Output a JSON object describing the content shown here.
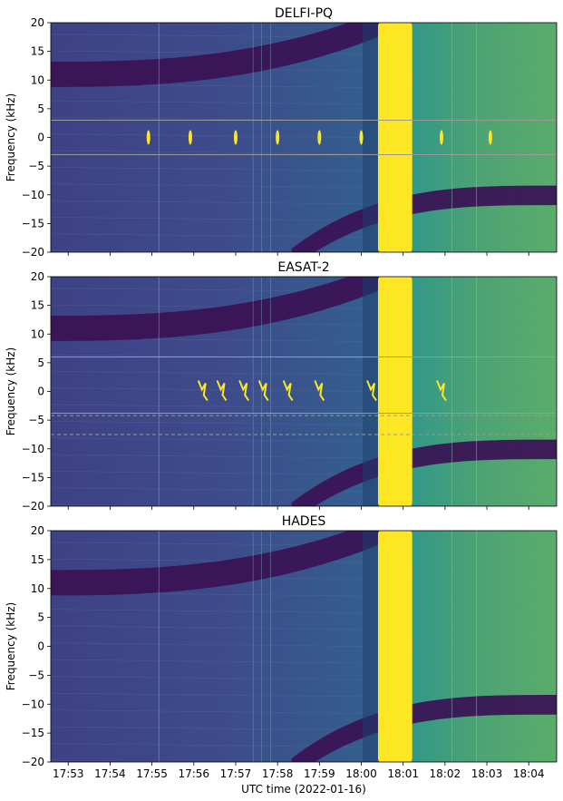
{
  "figure": {
    "xlabel": "UTC time (2022-01-16)",
    "ylabel": "Frequency (kHz)",
    "x_ticks": [
      "17:53",
      "17:54",
      "17:55",
      "17:56",
      "17:57",
      "17:58",
      "17:59",
      "18:00",
      "18:01",
      "18:02",
      "18:03",
      "18:04"
    ],
    "y_ticks": [
      "20",
      "15",
      "10",
      "5",
      "0",
      "−5",
      "−10",
      "−15",
      "−20"
    ]
  },
  "chart_data": [
    {
      "type": "heatmap",
      "title": "DELFI-PQ",
      "xlim": [
        "17:52:35",
        "18:04:40"
      ],
      "ylim": [
        -20,
        20
      ],
      "colormap": "viridis",
      "saturated_band": {
        "x_start": "18:00:24",
        "x_end": "18:01:13"
      },
      "doppler_bands": [
        {
          "description": "upper dark band",
          "start_freq": 11,
          "end_time": "18:00:40"
        },
        {
          "description": "lower dark band",
          "start_time": "17:58:30",
          "end_freq": -10
        }
      ],
      "hlines": [
        {
          "y": 3,
          "style": "solid"
        },
        {
          "y": -3,
          "style": "solid"
        }
      ],
      "signals": [
        {
          "time": "17:54:55",
          "freq": 0
        },
        {
          "time": "17:55:55",
          "freq": 0
        },
        {
          "time": "17:57:00",
          "freq": 0
        },
        {
          "time": "17:58:00",
          "freq": 0
        },
        {
          "time": "17:59:00",
          "freq": 0
        },
        {
          "time": "18:00:00",
          "freq": 0
        },
        {
          "time": "18:01:55",
          "freq": 0
        },
        {
          "time": "18:03:05",
          "freq": 0
        }
      ]
    },
    {
      "type": "heatmap",
      "title": "EASAT-2",
      "xlim": [
        "17:52:35",
        "18:04:40"
      ],
      "ylim": [
        -20,
        20
      ],
      "colormap": "viridis",
      "saturated_band": {
        "x_start": "18:00:24",
        "x_end": "18:01:13"
      },
      "hlines": [
        {
          "y": 6,
          "style": "solid"
        },
        {
          "y": -3.8,
          "style": "solid"
        },
        {
          "y": -4.2,
          "style": "dashed"
        },
        {
          "y": -7.5,
          "style": "dashed"
        }
      ],
      "signals": [
        {
          "time": "17:56:13",
          "freq": 0
        },
        {
          "time": "17:56:40",
          "freq": 0
        },
        {
          "time": "17:57:12",
          "freq": 0
        },
        {
          "time": "17:57:40",
          "freq": 0
        },
        {
          "time": "17:58:15",
          "freq": 0
        },
        {
          "time": "17:59:00",
          "freq": 0
        },
        {
          "time": "18:00:15",
          "freq": 0
        },
        {
          "time": "18:01:55",
          "freq": 0
        }
      ]
    },
    {
      "type": "heatmap",
      "title": "HADES",
      "xlim": [
        "17:52:35",
        "18:04:40"
      ],
      "ylim": [
        -20,
        20
      ],
      "colormap": "viridis",
      "saturated_band": {
        "x_start": "18:00:24",
        "x_end": "18:01:13"
      },
      "hlines": [],
      "signals": []
    }
  ]
}
